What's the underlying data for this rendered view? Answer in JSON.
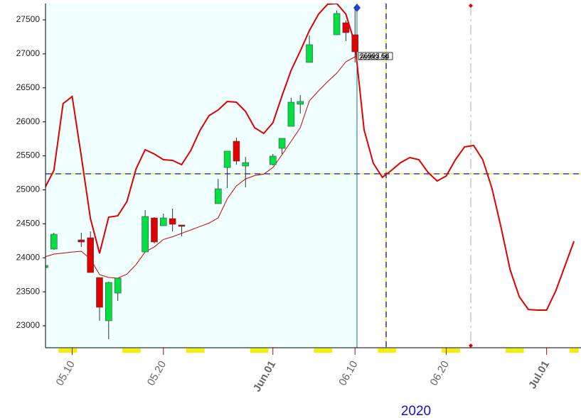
{
  "chart_data": {
    "type": "candlestick",
    "xlabel": "2020",
    "categories": [
      null,
      null,
      null,
      "05.10",
      null,
      null,
      null,
      null,
      null,
      null,
      null,
      null,
      null,
      "05.20",
      null,
      null,
      null,
      null,
      null,
      null,
      null,
      null,
      null,
      null,
      null,
      "Jun.01",
      null,
      null,
      null,
      null,
      null,
      null,
      null,
      null,
      "06.10",
      null,
      null,
      null,
      null,
      null,
      null,
      null,
      null,
      null,
      "06.20",
      null,
      null,
      null,
      null,
      null,
      null,
      null,
      null,
      null,
      null,
      "Jul.01",
      null,
      null,
      null
    ],
    "open": [
      23856,
      24128,
      null,
      null,
      24264,
      24295,
      23710,
      23074,
      23481,
      null,
      null,
      24086,
      24587,
      24472,
      24577,
      24483,
      null,
      null,
      null,
      24796,
      25328,
      25715,
      25350,
      null,
      null,
      25370,
      25610,
      25934,
      26258,
      26874,
      null,
      null,
      27281,
      27458,
      27281,
      null,
      null,
      null,
      null,
      null,
      null,
      null,
      null,
      null,
      null,
      null,
      null,
      null,
      null,
      null,
      null,
      null,
      null,
      null,
      null,
      null,
      null,
      null,
      null
    ],
    "high": [
      24086,
      24368,
      null,
      null,
      24368,
      24389,
      23710,
      23648,
      23700,
      null,
      null,
      24702,
      24598,
      24650,
      24723,
      24483,
      null,
      null,
      null,
      25161,
      25569,
      25767,
      25485,
      null,
      null,
      25527,
      25757,
      26352,
      26393,
      27270,
      null,
      null,
      27636,
      27490,
      27698,
      null,
      null,
      null,
      null,
      null,
      null,
      null,
      null,
      null,
      null,
      null,
      null,
      null,
      null,
      null,
      null,
      null,
      null,
      null,
      null,
      null,
      null,
      null,
      null
    ],
    "low": [
      23846,
      24117,
      null,
      null,
      24159,
      23783,
      23074,
      22802,
      23366,
      null,
      null,
      24086,
      24211,
      24472,
      24389,
      24316,
      null,
      null,
      null,
      24796,
      25026,
      25370,
      25036,
      null,
      null,
      25360,
      25527,
      25934,
      26122,
      26874,
      null,
      null,
      27281,
      27187,
      26874,
      null,
      null,
      null,
      null,
      null,
      null,
      null,
      null,
      null,
      null,
      null,
      null,
      null,
      null,
      null,
      null,
      null,
      null,
      null,
      null,
      null,
      null,
      null,
      null
    ],
    "close": [
      23888,
      24347,
      null,
      null,
      24232,
      23783,
      23272,
      23637,
      23700,
      null,
      null,
      24608,
      24232,
      24587,
      24493,
      24462,
      null,
      null,
      null,
      25015,
      25569,
      25422,
      25401,
      null,
      null,
      25496,
      25757,
      26289,
      26300,
      27135,
      null,
      null,
      27594,
      27312,
      27030,
      null,
      null,
      null,
      null,
      null,
      null,
      null,
      null,
      null,
      null,
      null,
      null,
      null,
      null,
      null,
      null,
      null,
      null,
      null,
      null,
      null,
      null,
      null,
      null
    ],
    "up_color": "#00e040",
    "down_color": "#e00000",
    "series": [
      {
        "color": "#e00000",
        "values": [
          25026,
          25287,
          26268,
          26372,
          25496,
          24577,
          24065,
          24598,
          24618,
          24827,
          25307,
          25590,
          25527,
          25443,
          25433,
          25370,
          25579,
          25871,
          26091,
          26174,
          26299,
          26289,
          26153,
          25913,
          25830,
          25986,
          26383,
          26759,
          27041,
          27343,
          27583,
          27730,
          27740,
          27583,
          27145,
          25882,
          25391,
          25183,
          25287,
          25401,
          25475,
          25443,
          25255,
          25130,
          25203,
          25443,
          25631,
          25652,
          25443,
          25026,
          24452,
          23825,
          23428,
          23240,
          23230,
          23230,
          23512,
          23877,
          24243
        ]
      },
      {
        "color": "#d00000",
        "values": [
          24013,
          24055,
          24070,
          24085,
          24097,
          23982,
          23752,
          23710,
          23700,
          23760,
          23900,
          24086,
          24160,
          24270,
          24310,
          24360,
          24410,
          24460,
          24510,
          24587,
          24869,
          25057,
          25161,
          25210,
          25230,
          25330,
          25516,
          25715,
          25913,
          26310,
          26456,
          26592,
          26717,
          26884,
          26957,
          null,
          null,
          null,
          null,
          null,
          null,
          null,
          null,
          null,
          null,
          null,
          null,
          null,
          null,
          null,
          null,
          null,
          null,
          null,
          null,
          null,
          null,
          null,
          null
        ]
      }
    ],
    "hline": 25235,
    "annotations": [
      "26993.54",
      "26983.59"
    ],
    "ylim": [
      22677,
      27740
    ],
    "yticks": [
      23000,
      23500,
      24000,
      24500,
      25000,
      25500,
      26000,
      26500,
      27000,
      27500
    ]
  }
}
